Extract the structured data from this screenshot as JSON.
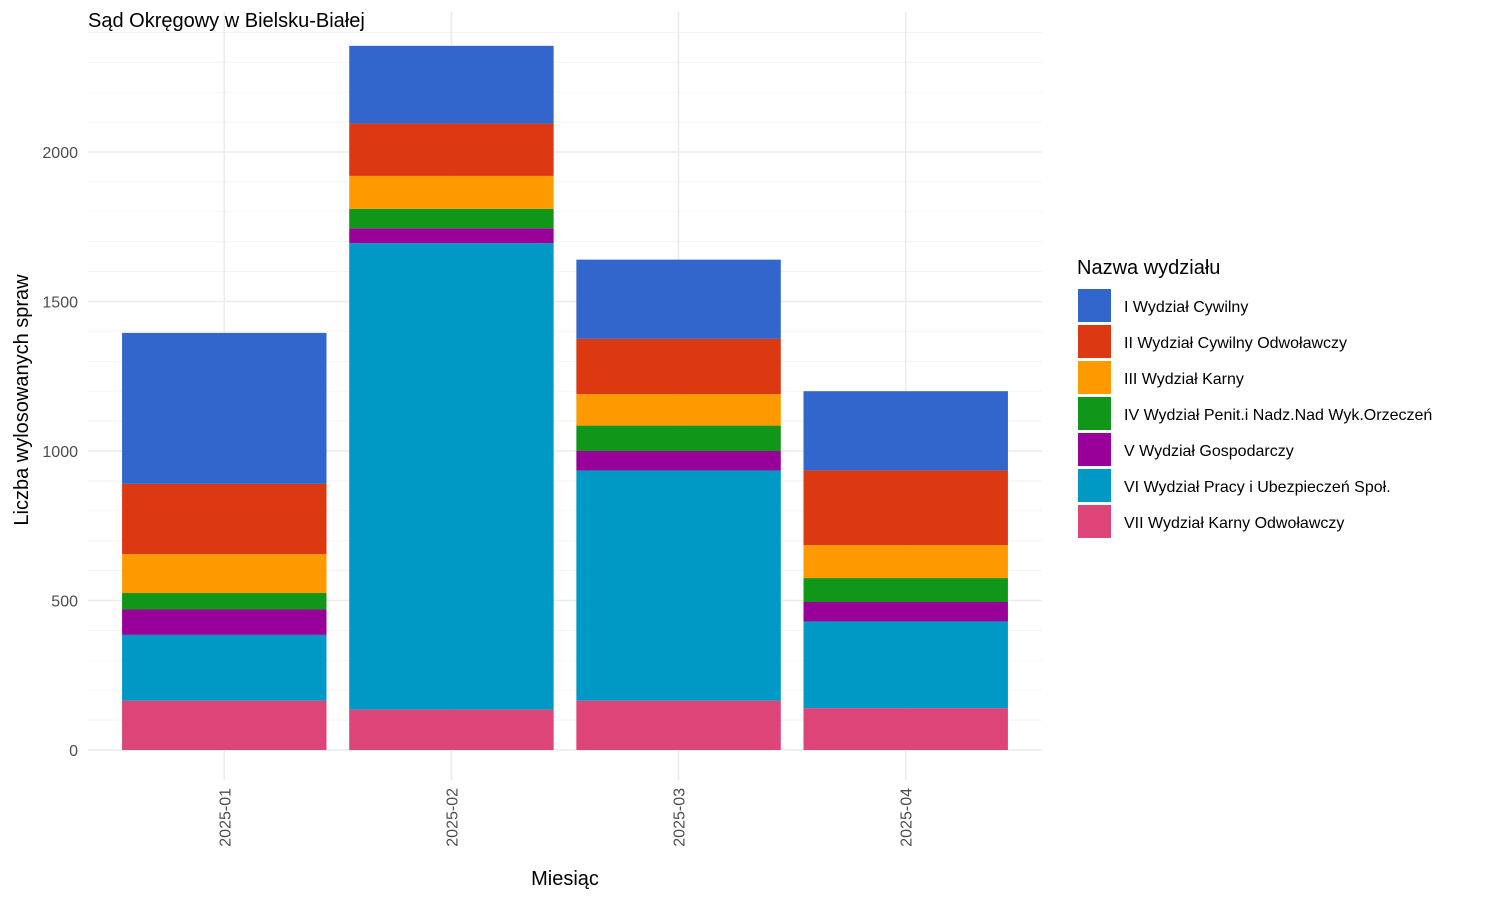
{
  "chart_data": {
    "type": "bar",
    "stacked": true,
    "title": "Sąd Okręgowy w Bielsku-Białej",
    "xlabel": "Miesiąc",
    "ylabel": "Liczba wylosowanych spraw",
    "legend_title": "Nazwa wydziału",
    "legend_position": "right",
    "grid": true,
    "ylim": [
      0,
      2400
    ],
    "y_ticks": [
      0,
      500,
      1000,
      1500,
      2000
    ],
    "categories": [
      "2025-01",
      "2025-02",
      "2025-03",
      "2025-04"
    ],
    "series": [
      {
        "name": "I Wydział Cywilny",
        "color": "#3366CC",
        "values": [
          505,
          260,
          265,
          265
        ]
      },
      {
        "name": "II Wydział Cywilny Odwoławczy",
        "color": "#DC3912",
        "values": [
          235,
          175,
          185,
          250
        ]
      },
      {
        "name": "III Wydział Karny",
        "color": "#FF9900",
        "values": [
          130,
          110,
          105,
          110
        ]
      },
      {
        "name": "IV Wydział Penit.i Nadz.Nad Wyk.Orzeczeń",
        "color": "#109618",
        "values": [
          55,
          65,
          85,
          80
        ]
      },
      {
        "name": "V Wydział Gospodarczy",
        "color": "#990099",
        "values": [
          85,
          50,
          65,
          65
        ]
      },
      {
        "name": "VI Wydział Pracy i Ubezpieczeń Społ.",
        "color": "#0099C6",
        "values": [
          220,
          1560,
          770,
          290
        ]
      },
      {
        "name": "VII Wydział Karny Odwoławczy",
        "color": "#DD4477",
        "values": [
          165,
          135,
          165,
          140
        ]
      }
    ]
  }
}
